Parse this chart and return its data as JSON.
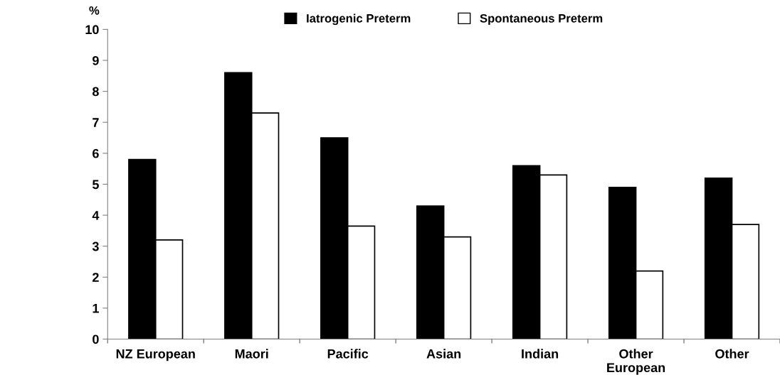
{
  "chart_data": {
    "type": "bar",
    "ylabel": "%",
    "categories": [
      "NZ European",
      "Maori",
      "Pacific",
      "Asian",
      "Indian",
      "Other\nEuropean",
      "Other"
    ],
    "series": [
      {
        "name": "Iatrogenic Preterm",
        "color": "#000000",
        "values": [
          5.8,
          8.6,
          6.5,
          4.3,
          5.6,
          4.9,
          5.2
        ]
      },
      {
        "name": "Spontaneous Preterm",
        "color": "#ffffff",
        "values": [
          3.2,
          7.3,
          3.65,
          3.3,
          5.3,
          2.2,
          3.7
        ]
      }
    ],
    "ylim": [
      0,
      10
    ],
    "yticks": [
      0,
      1,
      2,
      3,
      4,
      5,
      6,
      7,
      8,
      9,
      10
    ],
    "grid": false,
    "legend": "top"
  }
}
